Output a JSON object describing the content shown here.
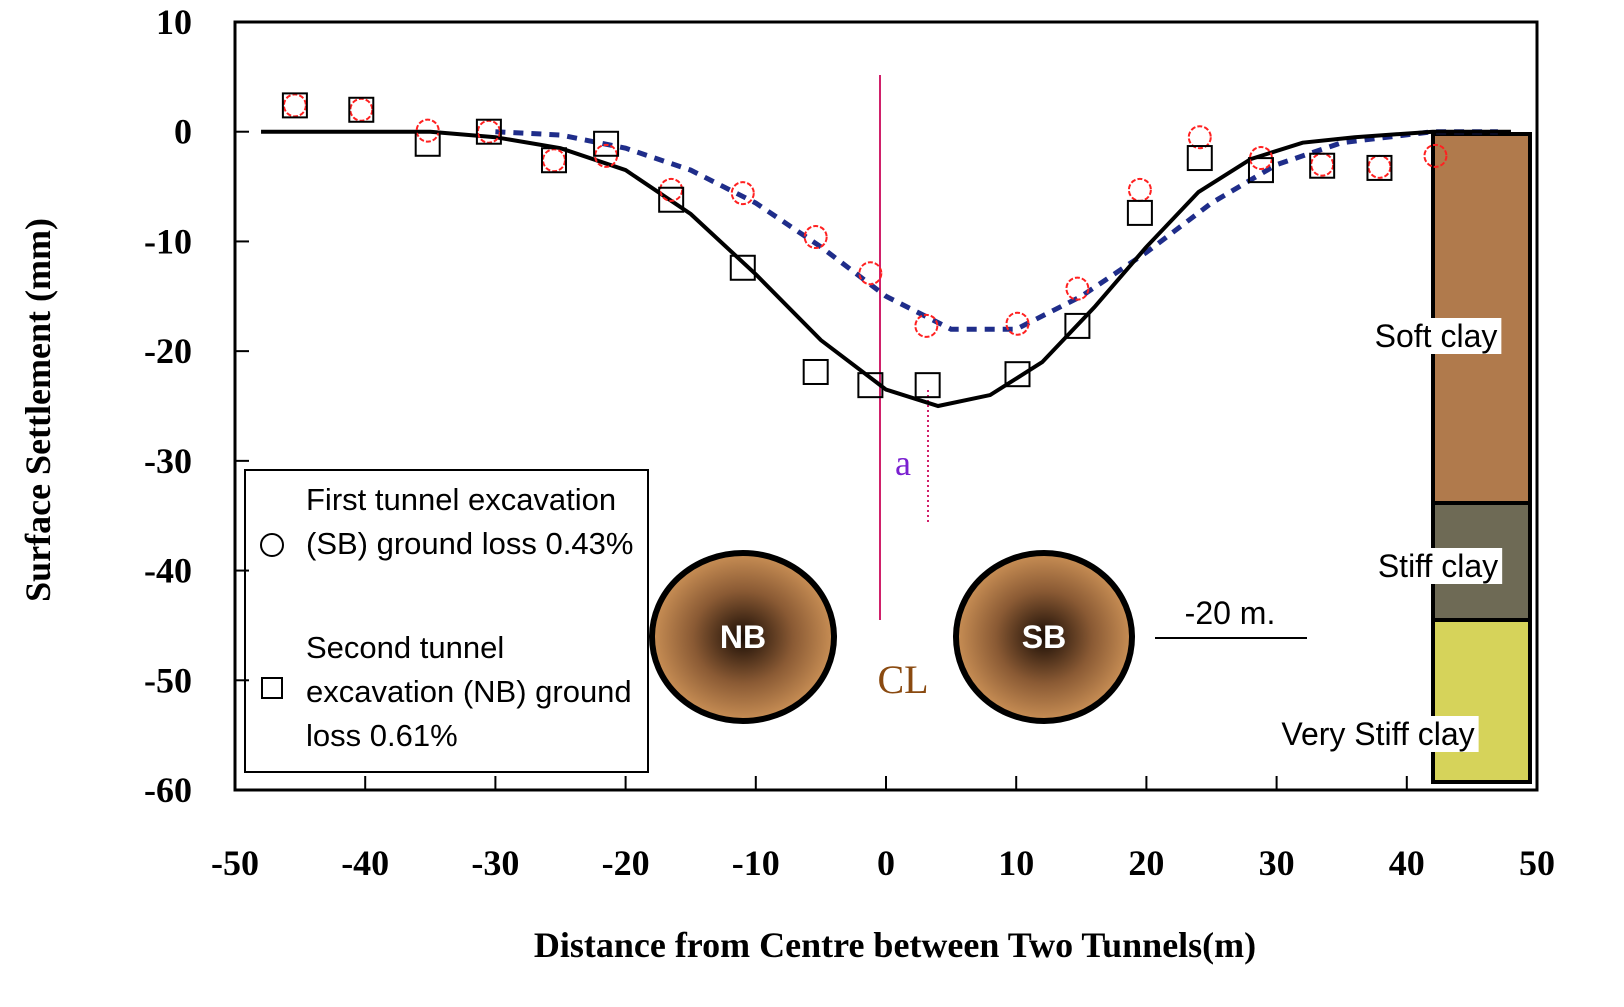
{
  "chart_data": {
    "type": "scatter",
    "xlabel": "Distance from Centre between Two Tunnels(m)",
    "ylabel": "Surface Settlement (mm)",
    "xlim": [
      -50,
      50
    ],
    "ylim": [
      -60,
      10
    ],
    "xticks": [
      -50,
      -40,
      -30,
      -20,
      -10,
      0,
      10,
      20,
      30,
      40,
      50
    ],
    "yticks": [
      -60,
      -50,
      -40,
      -30,
      -20,
      -10,
      0,
      10
    ],
    "series": [
      {
        "name": "First tunnel excavation (SB) ground loss 0.43%",
        "marker": "circle",
        "color": "#ff2020",
        "x": [
          -45.4,
          -40.3,
          -35.2,
          -30.5,
          -25.5,
          -21.5,
          -16.5,
          -11,
          -5.4,
          -1.2,
          3.1,
          10.1,
          14.7,
          19.5,
          24.1,
          28.8,
          33.5,
          37.9,
          42.2
        ],
        "values": [
          2.4,
          2,
          0.1,
          0,
          -2.6,
          -2.2,
          -5.3,
          -5.6,
          -9.6,
          -12.9,
          -17.7,
          -17.5,
          -14.3,
          -5.3,
          -0.5,
          -2.4,
          -3,
          -3.2,
          -2.2
        ]
      },
      {
        "name": "Second tunnel excavation (NB) ground loss 0.61%",
        "marker": "square",
        "color": "#000000",
        "x": [
          -45.4,
          -40.3,
          -35.2,
          -30.5,
          -25.5,
          -21.5,
          -16.5,
          -11,
          -5.4,
          -1.2,
          3.2,
          10.1,
          14.7,
          19.5,
          24.1,
          28.8,
          33.5,
          37.9
        ],
        "values": [
          2.4,
          2,
          -1.1,
          0,
          -2.6,
          -1.1,
          -6.2,
          -12.4,
          -21.9,
          -23.1,
          -23.1,
          -22.1,
          -17.7,
          -7.4,
          -2.4,
          -3.5,
          -3.1,
          -3.3
        ]
      }
    ],
    "fits": [
      {
        "color": "#1f2d8a",
        "dashed": true,
        "x": [
          -30,
          -25,
          -20,
          -15,
          -10,
          -5,
          0,
          5,
          10,
          15,
          20,
          25,
          30,
          35,
          42,
          47
        ],
        "values": [
          0,
          -0.3,
          -1.5,
          -3.5,
          -6.5,
          -10.5,
          -15,
          -18,
          -18,
          -15,
          -11,
          -6.5,
          -3,
          -1,
          0,
          0
        ]
      },
      {
        "color": "#000000",
        "dashed": false,
        "x": [
          -48,
          -35,
          -30,
          -25,
          -20,
          -15,
          -10,
          -5,
          0,
          4,
          8,
          12,
          16,
          20,
          24,
          28,
          32,
          36,
          42,
          48
        ],
        "values": [
          0,
          0,
          -0.5,
          -1.5,
          -3.5,
          -7.5,
          -13,
          -19,
          -23.5,
          -25,
          -24,
          -21,
          -16,
          -10.5,
          -5.5,
          -2.5,
          -1,
          -0.5,
          0,
          0
        ]
      }
    ],
    "annotations": {
      "offset": "a",
      "centre": "CL",
      "tunnel_nb": "NB",
      "tunnel_sb": "SB",
      "depth": "-20 m."
    },
    "layers": [
      {
        "label": "Soft clay",
        "color": "#b07a4c"
      },
      {
        "label": "Stiff clay",
        "color": "#6e6a55"
      },
      {
        "label": "Very Stiff clay",
        "color": "#d6d35a"
      }
    ]
  }
}
